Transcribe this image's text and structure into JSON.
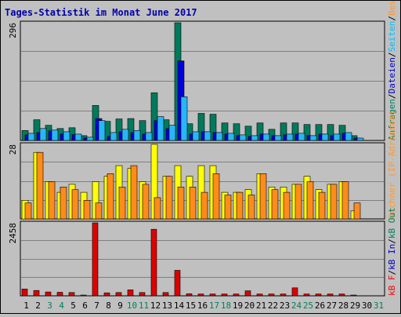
{
  "chart_data": {
    "type": "bar",
    "title": "Tages-Statistik im Monat June 2017",
    "categories": [
      "1",
      "2",
      "3",
      "4",
      "5",
      "6",
      "7",
      "8",
      "9",
      "10",
      "11",
      "12",
      "13",
      "14",
      "15",
      "16",
      "17",
      "18",
      "19",
      "20",
      "21",
      "22",
      "23",
      "24",
      "25",
      "26",
      "27",
      "28",
      "29",
      "30",
      "31"
    ],
    "category_colors": [
      "#000000",
      "#000000",
      "#00805f",
      "#00805f",
      "#000000",
      "#000000",
      "#000000",
      "#000000",
      "#000000",
      "#00805f",
      "#00805f",
      "#000000",
      "#000000",
      "#000000",
      "#000000",
      "#000000",
      "#00805f",
      "#00805f",
      "#000000",
      "#000000",
      "#000000",
      "#000000",
      "#000000",
      "#00805f",
      "#00805f",
      "#000000",
      "#000000",
      "#000000",
      "#000000",
      "#000000",
      "#00805f"
    ],
    "panels": [
      {
        "name": "requests",
        "ymax": 296,
        "ymax_label": "296",
        "legend": [
          "Anfragen",
          "/",
          "Dateien",
          "/",
          "Seiten",
          "/",
          "Besuche"
        ],
        "legend_colors": [
          "#00805f",
          "#000000",
          "#0000c0",
          "#000000",
          "#00c0ff",
          "#000000",
          "#ff9933"
        ],
        "series": [
          {
            "name": "Anfragen",
            "color": "#007a5c",
            "values": [
              25,
              52,
              38,
              30,
              32,
              12,
              88,
              48,
              54,
              55,
              50,
              120,
              52,
              296,
              42,
              68,
              66,
              44,
              42,
              36,
              44,
              28,
              44,
              44,
              40,
              40,
              40,
              38,
              12,
              0,
              0
            ]
          },
          {
            "name": "Dateien",
            "color": "#0000dd",
            "values": [
              14,
              20,
              24,
              16,
              15,
              6,
              55,
              10,
              22,
              20,
              16,
              50,
              30,
              200,
              16,
              22,
              20,
              16,
              12,
              10,
              16,
              12,
              14,
              16,
              12,
              16,
              12,
              18,
              6,
              0,
              0
            ]
          },
          {
            "name": "Seiten",
            "color": "#29b6f6",
            "values": [
              18,
              30,
              26,
              22,
              16,
              8,
              50,
              20,
              28,
              25,
              20,
              60,
              38,
              110,
              22,
              22,
              20,
              18,
              14,
              12,
              16,
              12,
              16,
              18,
              12,
              16,
              16,
              20,
              6,
              0,
              0
            ]
          }
        ]
      },
      {
        "name": "visits",
        "ymax": 28,
        "ymax_label": "28",
        "legend": [
          "Rechner (IP-Adressen)"
        ],
        "legend_colors": [
          "#ff9933"
        ],
        "series": [
          {
            "name": "Rechner",
            "color": "#ffff00",
            "values": [
              7,
              25,
              14,
              10,
              13,
              10,
              14,
              16,
              20,
              19,
              14,
              28,
              16,
              20,
              16,
              20,
              20,
              10,
              10,
              11,
              17,
              12,
              12,
              13,
              16,
              11,
              13,
              14,
              3,
              0,
              0
            ]
          },
          {
            "name": "Besuche",
            "color": "#ff8c1a",
            "values": [
              6,
              25,
              14,
              12,
              11,
              7,
              6,
              17,
              12,
              20,
              13,
              8,
              16,
              12,
              12,
              10,
              17,
              9,
              10,
              9,
              17,
              11,
              10,
              13,
              14,
              10,
              13,
              14,
              6,
              0,
              0
            ]
          }
        ]
      },
      {
        "name": "kbytes",
        "ymax": 2458,
        "ymax_label": "2458",
        "legend": [
          "kB F",
          "/",
          "kB In",
          "/",
          "kB Out"
        ],
        "legend_colors": [
          "#ff0000",
          "#000000",
          "#0000c0",
          "#000000",
          "#00805f"
        ],
        "series": [
          {
            "name": "kB F",
            "color": "#dd0000",
            "values": [
              230,
              180,
              130,
              120,
              110,
              20,
              2458,
              100,
              110,
              200,
              110,
              2240,
              110,
              860,
              70,
              60,
              60,
              60,
              60,
              170,
              60,
              60,
              60,
              270,
              60,
              60,
              60,
              60,
              25,
              0,
              0
            ]
          }
        ]
      }
    ]
  }
}
